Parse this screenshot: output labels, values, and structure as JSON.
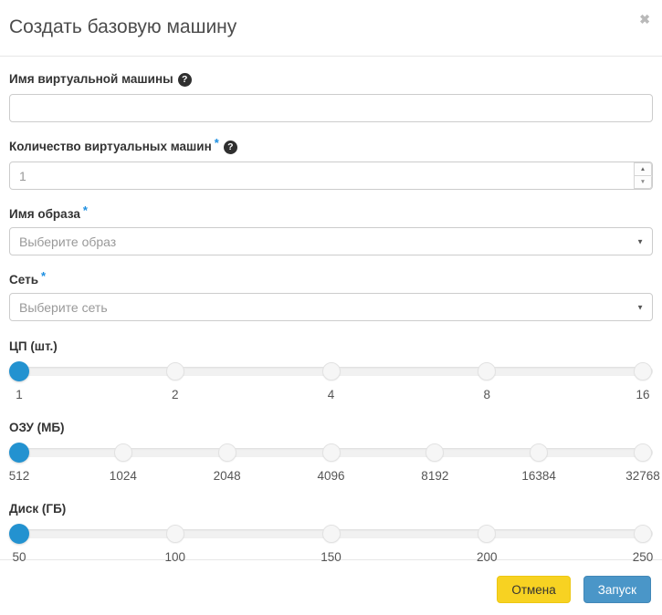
{
  "modal": {
    "title": "Создать базовую машину"
  },
  "icons": {
    "close": "✖",
    "help": "?",
    "dropdown_arrow": "▼",
    "spinner_up": "▲",
    "spinner_down": "▼",
    "required_marker": "*"
  },
  "fields": {
    "vm_name": {
      "label": "Имя виртуальной машины",
      "value": "",
      "required": false,
      "has_help": true
    },
    "vm_count": {
      "label": "Количество виртуальных машин",
      "value": "1",
      "required": true,
      "has_help": true
    },
    "image": {
      "label": "Имя образа",
      "placeholder": "Выберите образ",
      "required": true
    },
    "network": {
      "label": "Сеть",
      "placeholder": "Выберите сеть",
      "required": true
    }
  },
  "sliders": [
    {
      "id": "cpu",
      "label": "ЦП (шт.)",
      "stops": [
        "1",
        "2",
        "4",
        "8",
        "16"
      ],
      "selected_index": 0,
      "selected_value": "1"
    },
    {
      "id": "ram",
      "label": "ОЗУ (МБ)",
      "stops": [
        "512",
        "1024",
        "2048",
        "4096",
        "8192",
        "16384",
        "32768"
      ],
      "selected_index": 0,
      "selected_value": "512"
    },
    {
      "id": "disk",
      "label": "Диск (ГБ)",
      "stops": [
        "50",
        "100",
        "150",
        "200",
        "250"
      ],
      "selected_index": 0,
      "selected_value": "50"
    }
  ],
  "footer": {
    "cancel_label": "Отмена",
    "submit_label": "Запуск"
  },
  "colors": {
    "accent_blue": "#2392d0",
    "cancel_button_bg": "#f7d222",
    "submit_button_bg": "#4a96c8",
    "required_asterisk": "#1d8fe1"
  }
}
